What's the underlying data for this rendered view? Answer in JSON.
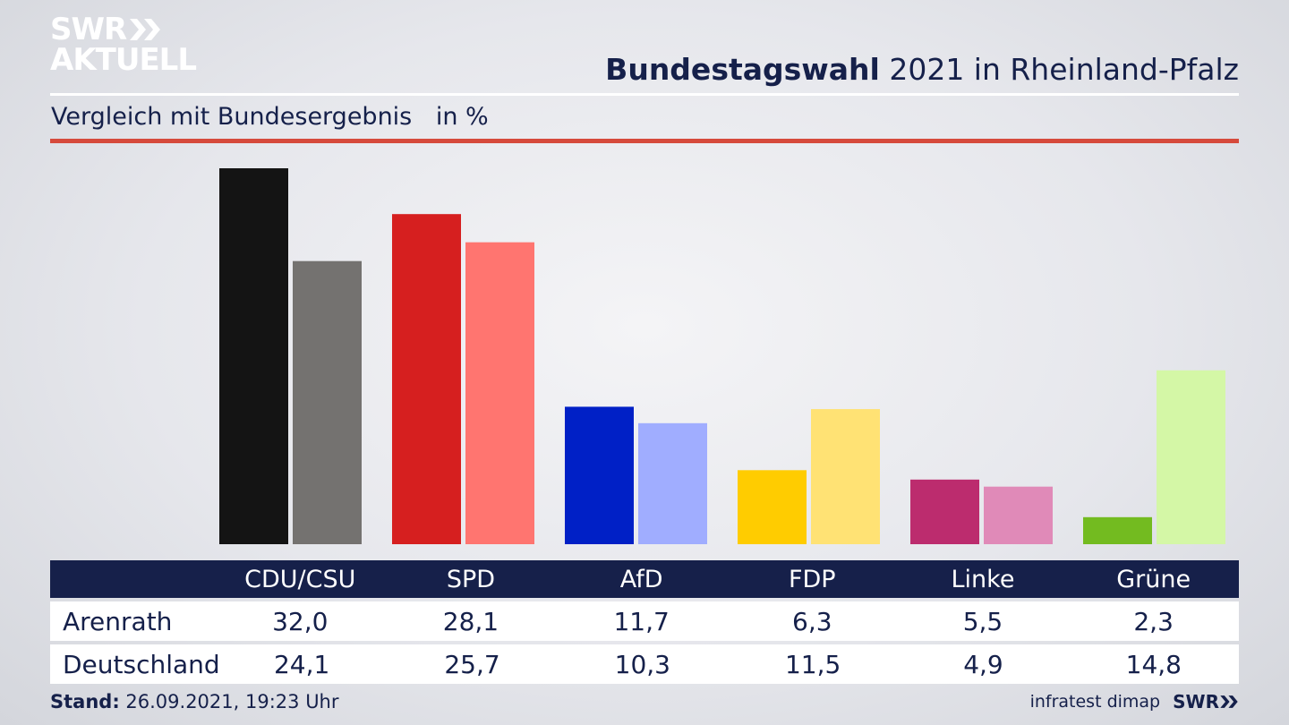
{
  "logo": {
    "line1": "SWR",
    "line2": "AKTUELL",
    "icon": "double-chevron-icon"
  },
  "header": {
    "title_bold": "Bundestagswahl",
    "title_rest": "2021 in Rheinland-Pfalz",
    "subtitle": "Vergleich mit Bundesergebnis",
    "unit": "in %"
  },
  "chart_data": {
    "type": "bar",
    "title": "Bundestagswahl 2021 in Rheinland-Pfalz",
    "subtitle": "Vergleich mit Bundesergebnis",
    "ylabel": "in %",
    "ylim": [
      0,
      32
    ],
    "categories": [
      "CDU/CSU",
      "SPD",
      "AfD",
      "FDP",
      "Linke",
      "Grüne"
    ],
    "series": [
      {
        "name": "Arenrath",
        "values": [
          32.0,
          28.1,
          11.7,
          6.3,
          5.5,
          2.3
        ],
        "colors": [
          "#141414",
          "#d61f1f",
          "#0020c6",
          "#ffcc00",
          "#bc2c6e",
          "#73bb20"
        ]
      },
      {
        "name": "Deutschland",
        "values": [
          24.1,
          25.7,
          10.3,
          11.5,
          4.9,
          14.8
        ],
        "colors": [
          "#747270",
          "#ff7570",
          "#a0adff",
          "#ffe274",
          "#e08ab8",
          "#d4f7a6"
        ]
      }
    ],
    "grid": false,
    "legend": "table-below"
  },
  "table": {
    "header": [
      "CDU/CSU",
      "SPD",
      "AfD",
      "FDP",
      "Linke",
      "Grüne"
    ],
    "rows": [
      {
        "label": "Arenrath",
        "values": [
          "32,0",
          "28,1",
          "11,7",
          "6,3",
          "5,5",
          "2,3"
        ]
      },
      {
        "label": "Deutschland",
        "values": [
          "24,1",
          "25,7",
          "10,3",
          "11,5",
          "4,9",
          "14,8"
        ]
      }
    ]
  },
  "footer": {
    "stand_label": "Stand:",
    "stand_value": "26.09.2021, 19:23 Uhr",
    "source": "infratest dimap",
    "brand": "SWR"
  }
}
